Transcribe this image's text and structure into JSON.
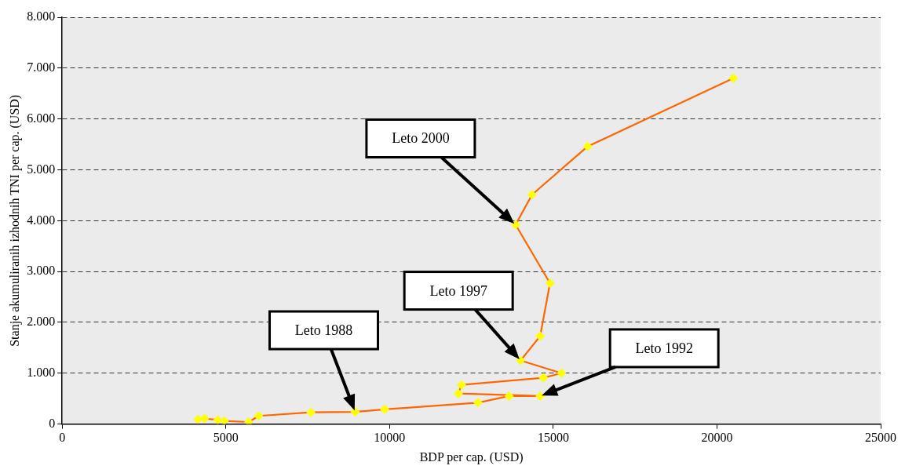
{
  "chart_data": {
    "type": "line",
    "xlabel": "BDP per cap. (USD)",
    "ylabel": "Stanje akumuliranih izhodnih TNI per cap. (USD)",
    "series": [
      {
        "color": "#ff6600",
        "colors": [
          "#ffff00",
          "#ffff00",
          "#ffff00",
          "#ffff00",
          "#ffff00",
          "#ffff00",
          "#ffff00",
          "#ffff00",
          "#ffff00",
          "#ffff00",
          "#ffff00",
          "#ffff00",
          "#ffff00",
          "#ffff00",
          "#ffff00",
          "#ffff00",
          "#ffff00",
          "#ffff00",
          "#ffff00",
          "#ffff00",
          "#ffff00",
          "#ffff00",
          "#ffff00"
        ],
        "x": [
          4150,
          4350,
          4750,
          4950,
          5700,
          6000,
          7600,
          8950,
          9850,
          12700,
          13650,
          14600,
          12100,
          12200,
          14700,
          15250,
          14000,
          14600,
          14900,
          13850,
          14350,
          16050,
          20500
        ],
        "values": [
          90,
          110,
          80,
          60,
          40,
          160,
          230,
          240,
          290,
          420,
          550,
          550,
          600,
          770,
          910,
          1000,
          1250,
          1730,
          2770,
          3920,
          4510,
          5460,
          6800
        ]
      }
    ],
    "xlim": [
      0,
      25000
    ],
    "xticks": [
      0,
      5000,
      10000,
      15000,
      20000,
      25000
    ],
    "ylim": [
      0,
      8000
    ],
    "yticks": [
      0,
      {
        "value": 1000,
        "label": "1.000"
      },
      {
        "value": 2000,
        "label": "2.000"
      },
      {
        "value": 3000,
        "label": "3.000"
      },
      {
        "value": 4000,
        "label": "4.000"
      },
      {
        "value": 5000,
        "label": "5.000"
      },
      {
        "value": 6000,
        "label": "6.000"
      },
      {
        "value": 7000,
        "label": "7.000"
      },
      {
        "value": 8000,
        "label": "8.000"
      }
    ],
    "grid": "y",
    "marker": "diamond",
    "line_style": "solid",
    "legend": false,
    "annotations": [
      "Leto 1988",
      "Leto 1992",
      "Leto 1997",
      "Leto 2000"
    ]
  }
}
